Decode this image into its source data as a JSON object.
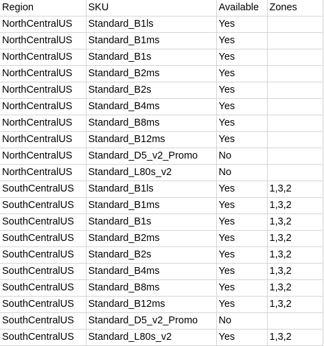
{
  "sheet": {
    "columns": [
      "Region",
      "SKU",
      "Available",
      "Zones"
    ],
    "rows": [
      [
        "NorthCentralUS",
        "Standard_B1ls",
        "Yes",
        ""
      ],
      [
        "NorthCentralUS",
        "Standard_B1ms",
        "Yes",
        ""
      ],
      [
        "NorthCentralUS",
        "Standard_B1s",
        "Yes",
        ""
      ],
      [
        "NorthCentralUS",
        "Standard_B2ms",
        "Yes",
        ""
      ],
      [
        "NorthCentralUS",
        "Standard_B2s",
        "Yes",
        ""
      ],
      [
        "NorthCentralUS",
        "Standard_B4ms",
        "Yes",
        ""
      ],
      [
        "NorthCentralUS",
        "Standard_B8ms",
        "Yes",
        ""
      ],
      [
        "NorthCentralUS",
        "Standard_B12ms",
        "Yes",
        ""
      ],
      [
        "NorthCentralUS",
        "Standard_D5_v2_Promo",
        "No",
        ""
      ],
      [
        "NorthCentralUS",
        "Standard_L80s_v2",
        "No",
        ""
      ],
      [
        "SouthCentralUS",
        "Standard_B1ls",
        "Yes",
        "1,3,2"
      ],
      [
        "SouthCentralUS",
        "Standard_B1ms",
        "Yes",
        "1,3,2"
      ],
      [
        "SouthCentralUS",
        "Standard_B1s",
        "Yes",
        "1,3,2"
      ],
      [
        "SouthCentralUS",
        "Standard_B2ms",
        "Yes",
        "1,3,2"
      ],
      [
        "SouthCentralUS",
        "Standard_B2s",
        "Yes",
        "1,3,2"
      ],
      [
        "SouthCentralUS",
        "Standard_B4ms",
        "Yes",
        "1,3,2"
      ],
      [
        "SouthCentralUS",
        "Standard_B8ms",
        "Yes",
        "1,3,2"
      ],
      [
        "SouthCentralUS",
        "Standard_B12ms",
        "Yes",
        "1,3,2"
      ],
      [
        "SouthCentralUS",
        "Standard_D5_v2_Promo",
        "No",
        ""
      ],
      [
        "SouthCentralUS",
        "Standard_L80s_v2",
        "Yes",
        "1,3,2"
      ]
    ]
  },
  "colors": {
    "gridline": "#d4d4d4",
    "text": "#000000",
    "background": "#ffffff"
  }
}
